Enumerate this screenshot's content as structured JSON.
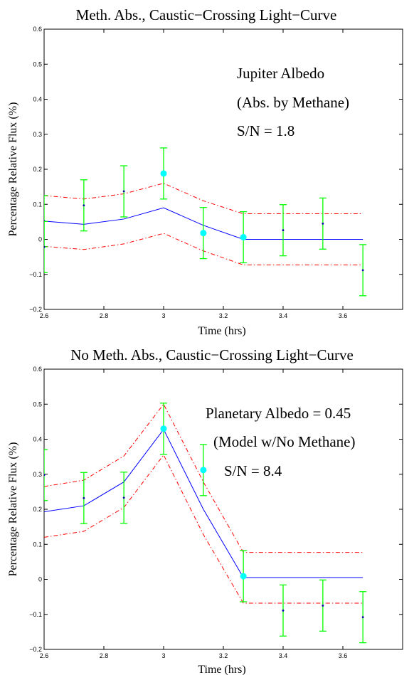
{
  "chart_data": [
    {
      "type": "line",
      "title": "Meth. Abs., Caustic−Crossing Light−Curve",
      "xlabel": "Time (hrs)",
      "ylabel": "Percentage Relative Flux (%)",
      "xlim": [
        2.6,
        3.8
      ],
      "ylim": [
        -0.2,
        0.6
      ],
      "xticks": [
        2.6,
        2.8,
        3.0,
        3.2,
        3.4,
        3.6
      ],
      "xtick_labels": [
        "2.6",
        "2.8",
        "3",
        "3.2",
        "3.4",
        "3.6"
      ],
      "yticks": [
        -0.2,
        -0.1,
        0,
        0.1,
        0.2,
        0.3,
        0.4,
        0.5,
        0.6
      ],
      "ytick_labels": [
        "−0.2",
        "−0.1",
        "0",
        "0.1",
        "0.2",
        "0.3",
        "0.4",
        "0.5",
        "0.6"
      ],
      "grid": false,
      "annotations": [
        "Jupiter Albedo",
        "(Abs. by Methane)",
        "S/N = 1.8"
      ],
      "model_x": [
        2.6,
        2.733,
        2.867,
        3.0,
        3.133,
        3.267,
        3.4,
        3.533,
        3.667
      ],
      "series": [
        {
          "role": "model",
          "style": "solid",
          "color": "#0000ff",
          "values": [
            0.052,
            0.043,
            0.058,
            0.09,
            0.04,
            0.0,
            0.0,
            0.0,
            0.0
          ]
        },
        {
          "role": "upper",
          "style": "dashdot",
          "color": "#ff0000",
          "values": [
            0.125,
            0.115,
            0.13,
            0.16,
            0.11,
            0.073,
            0.073,
            0.073,
            0.073
          ]
        },
        {
          "role": "lower",
          "style": "dashdot",
          "color": "#ff0000",
          "values": [
            -0.02,
            -0.029,
            -0.013,
            0.017,
            -0.033,
            -0.073,
            -0.073,
            -0.073,
            -0.073
          ]
        }
      ],
      "points": [
        {
          "x": 2.6,
          "y": 0.052,
          "err": 0.073,
          "big": false
        },
        {
          "x": 2.6,
          "y": -0.022,
          "err": 0.073,
          "big": false
        },
        {
          "x": 2.733,
          "y": 0.097,
          "err": 0.073,
          "big": false
        },
        {
          "x": 2.867,
          "y": 0.137,
          "err": 0.073,
          "big": false
        },
        {
          "x": 3.0,
          "y": 0.188,
          "err": 0.073,
          "big": true
        },
        {
          "x": 3.133,
          "y": 0.018,
          "err": 0.073,
          "big": true
        },
        {
          "x": 3.267,
          "y": 0.006,
          "err": 0.073,
          "big": true
        },
        {
          "x": 3.4,
          "y": 0.026,
          "err": 0.073,
          "big": false
        },
        {
          "x": 3.533,
          "y": 0.045,
          "err": 0.073,
          "big": false
        },
        {
          "x": 3.667,
          "y": -0.088,
          "err": 0.073,
          "big": false
        }
      ]
    },
    {
      "type": "line",
      "title": "No Meth. Abs., Caustic−Crossing Light−Curve",
      "xlabel": "Time (hrs)",
      "ylabel": "Percentage Relative Flux (%)",
      "xlim": [
        2.6,
        3.8
      ],
      "ylim": [
        -0.2,
        0.6
      ],
      "xticks": [
        2.6,
        2.8,
        3.0,
        3.2,
        3.4,
        3.6
      ],
      "xtick_labels": [
        "2.6",
        "2.8",
        "3",
        "3.2",
        "3.4",
        "3.6"
      ],
      "yticks": [
        -0.2,
        -0.1,
        0,
        0.1,
        0.2,
        0.3,
        0.4,
        0.5,
        0.6
      ],
      "ytick_labels": [
        "−0.2",
        "−0.1",
        "0",
        "0.1",
        "0.2",
        "0.3",
        "0.4",
        "0.5",
        "0.6"
      ],
      "grid": false,
      "annotations": [
        "Planetary Albedo = 0.45",
        "(Model w/No Methane)",
        "S/N = 8.4"
      ],
      "model_x": [
        2.6,
        2.733,
        2.867,
        3.0,
        3.133,
        3.267,
        3.4,
        3.533,
        3.667
      ],
      "series": [
        {
          "role": "model",
          "style": "solid",
          "color": "#0000ff",
          "values": [
            0.193,
            0.21,
            0.278,
            0.428,
            0.2,
            0.005,
            0.005,
            0.005,
            0.005
          ]
        },
        {
          "role": "upper",
          "style": "dashdot",
          "color": "#ff0000",
          "values": [
            0.265,
            0.283,
            0.352,
            0.5,
            0.278,
            0.077,
            0.077,
            0.077,
            0.077
          ]
        },
        {
          "role": "lower",
          "style": "dashdot",
          "color": "#ff0000",
          "values": [
            0.12,
            0.137,
            0.205,
            0.355,
            0.128,
            -0.068,
            -0.068,
            -0.068,
            -0.068
          ]
        }
      ],
      "points": [
        {
          "x": 2.6,
          "y": 0.298,
          "err": 0.073,
          "big": false
        },
        {
          "x": 2.733,
          "y": 0.232,
          "err": 0.073,
          "big": false
        },
        {
          "x": 2.867,
          "y": 0.233,
          "err": 0.073,
          "big": false
        },
        {
          "x": 3.0,
          "y": 0.43,
          "err": 0.073,
          "big": true
        },
        {
          "x": 3.133,
          "y": 0.312,
          "err": 0.073,
          "big": true
        },
        {
          "x": 3.267,
          "y": 0.009,
          "err": 0.073,
          "big": true
        },
        {
          "x": 3.4,
          "y": -0.089,
          "err": 0.073,
          "big": false
        },
        {
          "x": 3.533,
          "y": -0.075,
          "err": 0.073,
          "big": false
        },
        {
          "x": 3.667,
          "y": -0.108,
          "err": 0.073,
          "big": false
        }
      ]
    }
  ],
  "colors": {
    "errorbar": "#00ff00",
    "marker_big": "#00ffff",
    "marker_small": "#0000aa",
    "model": "#0000ff",
    "bounds": "#ff0000"
  }
}
